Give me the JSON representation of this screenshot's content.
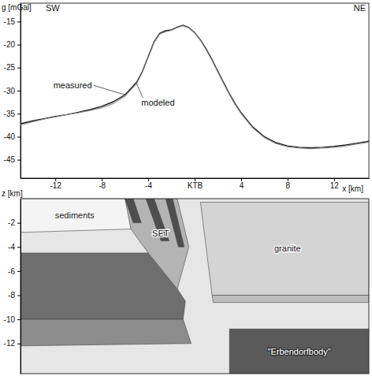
{
  "chart_data": [
    {
      "type": "line",
      "y_label": "g [mGal]",
      "x_label": "x [km]",
      "annotations": [
        "SW",
        "NE"
      ],
      "x": [
        -15,
        -14,
        -13,
        -12,
        -11,
        -10,
        -9,
        -8,
        -7,
        -6,
        -5,
        -4.5,
        -4,
        -3.5,
        -3,
        -2.5,
        -2,
        -1.5,
        -1,
        -0.5,
        0,
        0.5,
        1,
        1.5,
        2,
        2.5,
        3,
        3.5,
        4,
        5,
        6,
        7,
        8,
        9,
        10,
        11,
        12,
        13,
        14,
        15
      ],
      "series": [
        {
          "name": "measured",
          "color": "#1a1a1a",
          "line_style": "solid",
          "values": [
            -37.2,
            -36.6,
            -36.1,
            -35.6,
            -35.2,
            -34.7,
            -34.1,
            -33.4,
            -32.4,
            -30.9,
            -28.2,
            -25.8,
            -22.6,
            -19.4,
            -17.5,
            -17.0,
            -16.8,
            -16.2,
            -15.8,
            -16.3,
            -17.4,
            -19.0,
            -21.0,
            -23.3,
            -25.8,
            -28.3,
            -30.7,
            -32.9,
            -34.8,
            -37.9,
            -40.0,
            -41.3,
            -42.0,
            -42.3,
            -42.4,
            -42.3,
            -42.1,
            -41.8,
            -41.4,
            -41.0
          ]
        },
        {
          "name": "modeled",
          "color": "#8a8a8a",
          "line_style": "solid",
          "values": [
            -37.5,
            -36.8,
            -36.2,
            -35.7,
            -35.2,
            -34.8,
            -34.3,
            -33.7,
            -32.8,
            -31.2,
            -28.5,
            -26.0,
            -22.8,
            -19.6,
            -17.7,
            -17.2,
            -16.9,
            -16.3,
            -15.9,
            -16.4,
            -17.5,
            -19.1,
            -21.2,
            -23.5,
            -26.0,
            -28.5,
            -30.9,
            -33.1,
            -35.0,
            -38.1,
            -40.2,
            -41.5,
            -42.2,
            -42.5,
            -42.6,
            -42.5,
            -42.3,
            -42.0,
            -41.6,
            -41.2
          ]
        }
      ],
      "xlim": [
        -15,
        15
      ],
      "xticks": [
        -12,
        -8,
        -4,
        {
          "value": 0,
          "label": "KTB"
        },
        4,
        8,
        12
      ],
      "ylim": [
        -49,
        -11
      ],
      "yticks": [
        -45,
        -40,
        -35,
        -30,
        -25,
        -20,
        -15
      ],
      "grid": false
    },
    {
      "type": "cross_section",
      "y_label": "z [km]",
      "xlim": [
        -15,
        15
      ],
      "ylim": [
        -14.5,
        0
      ],
      "yticks": [
        -12,
        -10,
        -8,
        -6,
        -4,
        -2
      ],
      "tick_labels": "y",
      "bodies": [
        {
          "label": "sediments",
          "color": "#f4f4f4",
          "points": [
            [
              -15,
              0
            ],
            [
              -6,
              0
            ],
            [
              -5,
              -2.5
            ],
            [
              -15,
              -2.8
            ]
          ]
        },
        {
          "color": "#6e6e6e",
          "points": [
            [
              -15,
              -4.5
            ],
            [
              -3.5,
              -4.5
            ],
            [
              -0.8,
              -8.5
            ],
            [
              -1,
              -10
            ],
            [
              -15,
              -10
            ]
          ]
        },
        {
          "color": "#8c8c8c",
          "points": [
            [
              -15,
              -10
            ],
            [
              -1,
              -10
            ],
            [
              -0.3,
              -12
            ],
            [
              -15,
              -12.2
            ]
          ]
        },
        {
          "label": "SET",
          "color": "#b4b4b4",
          "points": [
            [
              -6,
              0
            ],
            [
              -1.5,
              0
            ],
            [
              -0.5,
              -4
            ],
            [
              -1.5,
              -7.5
            ],
            [
              -4,
              -4.5
            ],
            [
              -5.5,
              -2.5
            ]
          ]
        },
        {
          "color": "#4e4e4e",
          "points": [
            [
              -6,
              0
            ],
            [
              -5.3,
              0
            ],
            [
              -4.6,
              -2
            ],
            [
              -5.3,
              -2
            ]
          ]
        },
        {
          "color": "#4e4e4e",
          "points": [
            [
              -4.2,
              0
            ],
            [
              -3.5,
              0
            ],
            [
              -2.2,
              -3.5
            ],
            [
              -2.9,
              -3.5
            ]
          ]
        },
        {
          "color": "#4e4e4e",
          "points": [
            [
              -2.5,
              0
            ],
            [
              -1.9,
              0
            ],
            [
              -0.9,
              -4
            ],
            [
              -1.4,
              -4
            ]
          ]
        },
        {
          "label": "granite",
          "color": "#d4d4d4",
          "points": [
            [
              0.5,
              -0.3
            ],
            [
              15,
              -0.3
            ],
            [
              15,
              -8
            ],
            [
              1.5,
              -8
            ]
          ]
        },
        {
          "color": "#bdbdbd",
          "points": [
            [
              1.5,
              -8
            ],
            [
              15,
              -8
            ],
            [
              15,
              -8.6
            ],
            [
              1.6,
              -8.6
            ]
          ]
        },
        {
          "label": "\"Erbendorfbody\"",
          "color": "#5a5a5a",
          "points": [
            [
              3,
              -10.8
            ],
            [
              15,
              -10.8
            ],
            [
              15,
              -14.5
            ],
            [
              3,
              -14.5
            ]
          ]
        }
      ]
    }
  ]
}
